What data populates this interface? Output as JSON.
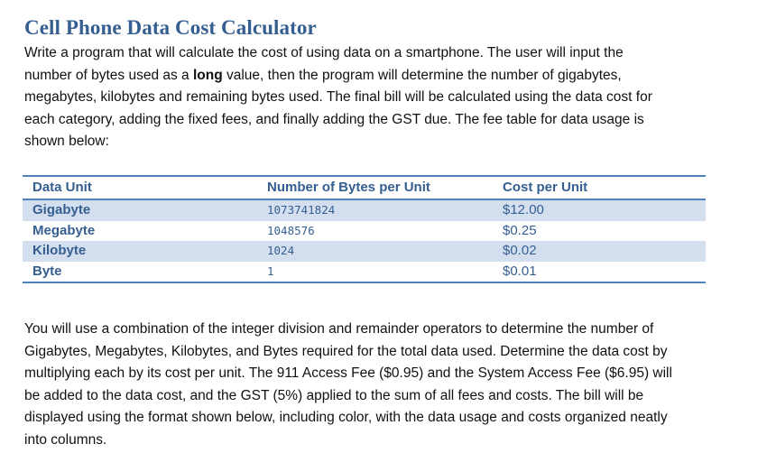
{
  "document": {
    "title": "Cell Phone Data Cost Calculator",
    "intro_lines": [
      {
        "before": "Write a program that will calculate the cost of using data on a smartphone. The user will input the",
        "bold": "",
        "after": ""
      },
      {
        "before": "number of bytes used as a ",
        "bold": "long",
        "after": " value, then the program will determine the number of gigabytes,"
      },
      {
        "before": "megabytes, kilobytes and remaining bytes used. The final bill will be calculated using the data cost for",
        "bold": "",
        "after": ""
      },
      {
        "before": "each category, adding the fixed fees, and finally adding the GST due. The fee table for data usage is",
        "bold": "",
        "after": ""
      },
      {
        "before": "shown below:",
        "bold": "",
        "after": ""
      }
    ],
    "fee_table": {
      "headers": [
        "Data Unit",
        "Number of Bytes per Unit",
        "Cost per Unit"
      ],
      "rows": [
        {
          "unit": "Gigabyte",
          "bytes": "1073741824",
          "cost": "$12.00"
        },
        {
          "unit": "Megabyte",
          "bytes": "1048576",
          "cost": "$0.25"
        },
        {
          "unit": "Kilobyte",
          "bytes": "1024",
          "cost": "$0.02"
        },
        {
          "unit": "Byte",
          "bytes": "1",
          "cost": "$0.01"
        }
      ],
      "colors": {
        "accent": "#4F81BD",
        "text": "#365F91",
        "shade": "#D3DFEE"
      }
    },
    "instructions_lines": [
      "You will use a combination of the integer division and remainder operators to determine the number of",
      "Gigabytes, Megabytes, Kilobytes, and Bytes required for the total data used. Determine the data cost by",
      "multiplying each by its cost per unit. The 911 Access Fee ($0.95) and the System Access Fee ($6.95) will",
      "be added to the data cost, and the GST (5%) applied to the sum of all fees and costs. The bill will be",
      "displayed using the format shown below, including color, with the data usage and costs organized neatly",
      "into columns."
    ]
  }
}
